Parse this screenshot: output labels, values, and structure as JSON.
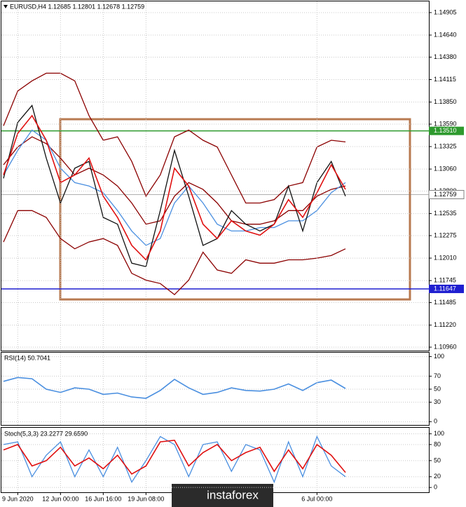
{
  "chart_data": [
    {
      "type": "line",
      "title": "EURUSD,H4 1.12685 1.12801 1.12678 1.12759",
      "xlim": [
        0,
        30
      ],
      "ylim": [
        1.10919,
        1.15037
      ],
      "yticks": [
        1.14905,
        {
          "value": 1.1464,
          "label": "1.14640"
        },
        {
          "value": 1.1438,
          "label": "1.14380"
        },
        1.14115,
        {
          "value": 1.1385,
          "label": "1.13850"
        },
        {
          "value": 1.1359,
          "label": "1.13590"
        },
        1.13325,
        {
          "value": 1.1306,
          "label": "1.13060"
        },
        {
          "value": 1.128,
          "label": "1.12800"
        },
        1.12535,
        1.12275,
        {
          "value": 1.1201,
          "label": "1.12010"
        },
        1.11745,
        1.11485,
        {
          "value": 1.1122,
          "label": "1.11220"
        },
        {
          "value": 1.1096,
          "label": "1.10960"
        }
      ],
      "grid": true,
      "levels": [
        {
          "value": 1.1351,
          "label": "1.13510",
          "color": "#2e9a2e"
        },
        {
          "value": 1.11647,
          "label": "1.11647",
          "color": "#1f1fd0"
        },
        {
          "value": 1.12759,
          "color": "#808080"
        }
      ],
      "series": [
        {
          "color": "#8b0000",
          "values": [
            1.1357,
            1.1398,
            1.141,
            1.1419,
            1.1419,
            1.141,
            1.1369,
            1.134,
            1.1344,
            1.1315,
            1.1274,
            1.1299,
            1.1344,
            1.1352,
            1.134,
            1.1332,
            1.1299,
            1.1266,
            1.1266,
            1.127,
            1.1286,
            1.129,
            1.1332,
            1.134,
            1.1338
          ]
        },
        {
          "color": "#8b0000",
          "values": [
            1.1311,
            1.1332,
            1.1344,
            1.1336,
            1.1319,
            1.1299,
            1.1307,
            1.1299,
            1.1286,
            1.1266,
            1.1241,
            1.1245,
            1.1274,
            1.129,
            1.1282,
            1.1266,
            1.1245,
            1.1241,
            1.1241,
            1.1245,
            1.1257,
            1.1257,
            1.1274,
            1.1282,
            1.1286
          ]
        },
        {
          "color": "#8b0000",
          "values": [
            1.122,
            1.1257,
            1.1257,
            1.1249,
            1.1224,
            1.1212,
            1.122,
            1.1224,
            1.1216,
            1.1183,
            1.1175,
            1.1171,
            1.1158,
            1.1175,
            1.1208,
            1.1187,
            1.1183,
            1.1199,
            1.1195,
            1.1195,
            1.1199,
            1.1199,
            1.1201,
            1.1204,
            1.1212
          ]
        },
        {
          "color": "#4a8fe0",
          "values": [
            1.1299,
            1.1328,
            1.1352,
            1.134,
            1.1307,
            1.129,
            1.1286,
            1.1278,
            1.1257,
            1.1233,
            1.1216,
            1.1224,
            1.1266,
            1.1286,
            1.1266,
            1.1241,
            1.1233,
            1.1233,
            1.1237,
            1.1237,
            1.1245,
            1.1245,
            1.1257,
            1.1278,
            1.129
          ]
        },
        {
          "color": "#111111",
          "values": [
            1.1295,
            1.1361,
            1.1381,
            1.1319,
            1.1266,
            1.1307,
            1.1315,
            1.1249,
            1.1241,
            1.1195,
            1.1191,
            1.1257,
            1.1328,
            1.1274,
            1.1216,
            1.1224,
            1.1257,
            1.1241,
            1.1233,
            1.1241,
            1.1286,
            1.1233,
            1.129,
            1.1315,
            1.1274
          ]
        },
        {
          "color": "#e01010",
          "values": [
            1.1299,
            1.1348,
            1.1369,
            1.134,
            1.129,
            1.1299,
            1.1319,
            1.1274,
            1.1249,
            1.1216,
            1.1199,
            1.1233,
            1.1307,
            1.1286,
            1.1241,
            1.1224,
            1.1245,
            1.1233,
            1.1228,
            1.1241,
            1.127,
            1.1249,
            1.1278,
            1.1311,
            1.1282
          ]
        }
      ]
    },
    {
      "type": "line",
      "title": "RSI(14) 50.7041",
      "xlim": [
        0,
        30
      ],
      "ylim": [
        -5,
        106
      ],
      "yticks": [
        0,
        30,
        50,
        70,
        100
      ],
      "grid": true,
      "series": [
        {
          "color": "#4a8fe0",
          "values": [
            62,
            68,
            66,
            50,
            45,
            52,
            50,
            42,
            44,
            38,
            36,
            48,
            65,
            52,
            42,
            45,
            52,
            48,
            47,
            50,
            58,
            48,
            60,
            64,
            51
          ]
        }
      ]
    },
    {
      "type": "line",
      "title": "Stoch(5,3,3) 23.2277 29.6590",
      "xlim": [
        0,
        30
      ],
      "ylim": [
        -9,
        110
      ],
      "yticks": [
        0,
        20,
        50,
        80,
        100
      ],
      "grid": true,
      "categories": [
        null,
        "9 Jun 2020",
        null,
        null,
        "12 Jun 00:00",
        null,
        null,
        "16 Jun 16:00",
        null,
        null,
        "19 Jun 08:00",
        null,
        null,
        null,
        null,
        null,
        null,
        null,
        null,
        null,
        null,
        null,
        "6 Jul 00:00",
        null,
        null
      ],
      "series": [
        {
          "color": "#4a8fe0",
          "values": [
            80,
            85,
            20,
            60,
            85,
            20,
            70,
            20,
            75,
            10,
            50,
            95,
            80,
            20,
            80,
            85,
            30,
            80,
            70,
            10,
            85,
            20,
            95,
            40,
            20
          ]
        },
        {
          "color": "#e01010",
          "values": [
            70,
            80,
            40,
            50,
            75,
            40,
            55,
            35,
            60,
            25,
            40,
            85,
            88,
            40,
            65,
            80,
            50,
            65,
            75,
            30,
            70,
            35,
            80,
            60,
            28
          ]
        }
      ]
    }
  ],
  "watermark": "instaforex"
}
